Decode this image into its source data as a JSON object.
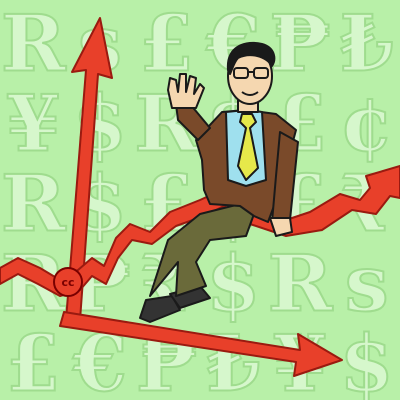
{
  "background": {
    "color": "#b8f0a8",
    "glyph_fill": "#d6f7cc",
    "glyph_stroke": "#9fdc8e",
    "rows": [
      [
        "R",
        "s",
        "£",
        "€",
        "₱",
        "₺"
      ],
      [
        "¥",
        "$",
        "R",
        "$",
        "£",
        "¢"
      ],
      [
        "R",
        "$",
        "£",
        "$",
        "£",
        "₹"
      ],
      [
        "R",
        "₱",
        "₹",
        "$",
        "R",
        "s"
      ],
      [
        "£",
        "€",
        "₱",
        "₺",
        "¥",
        "$"
      ]
    ]
  },
  "badge": {
    "text": "cc",
    "color": "#e8402a"
  },
  "arrows": {
    "color": "#e8402a",
    "dark": "#9a1a10",
    "icon": "trend-up-arrow-icon"
  },
  "man": {
    "icon": "waving-businessman-icon",
    "jacket": "#7a4a2a",
    "pants": "#6a6a3a",
    "shirt": "#9fe0ee",
    "tie": "#e6e84a",
    "skin": "#f5d7b0",
    "hair": "#1a1a1a"
  }
}
